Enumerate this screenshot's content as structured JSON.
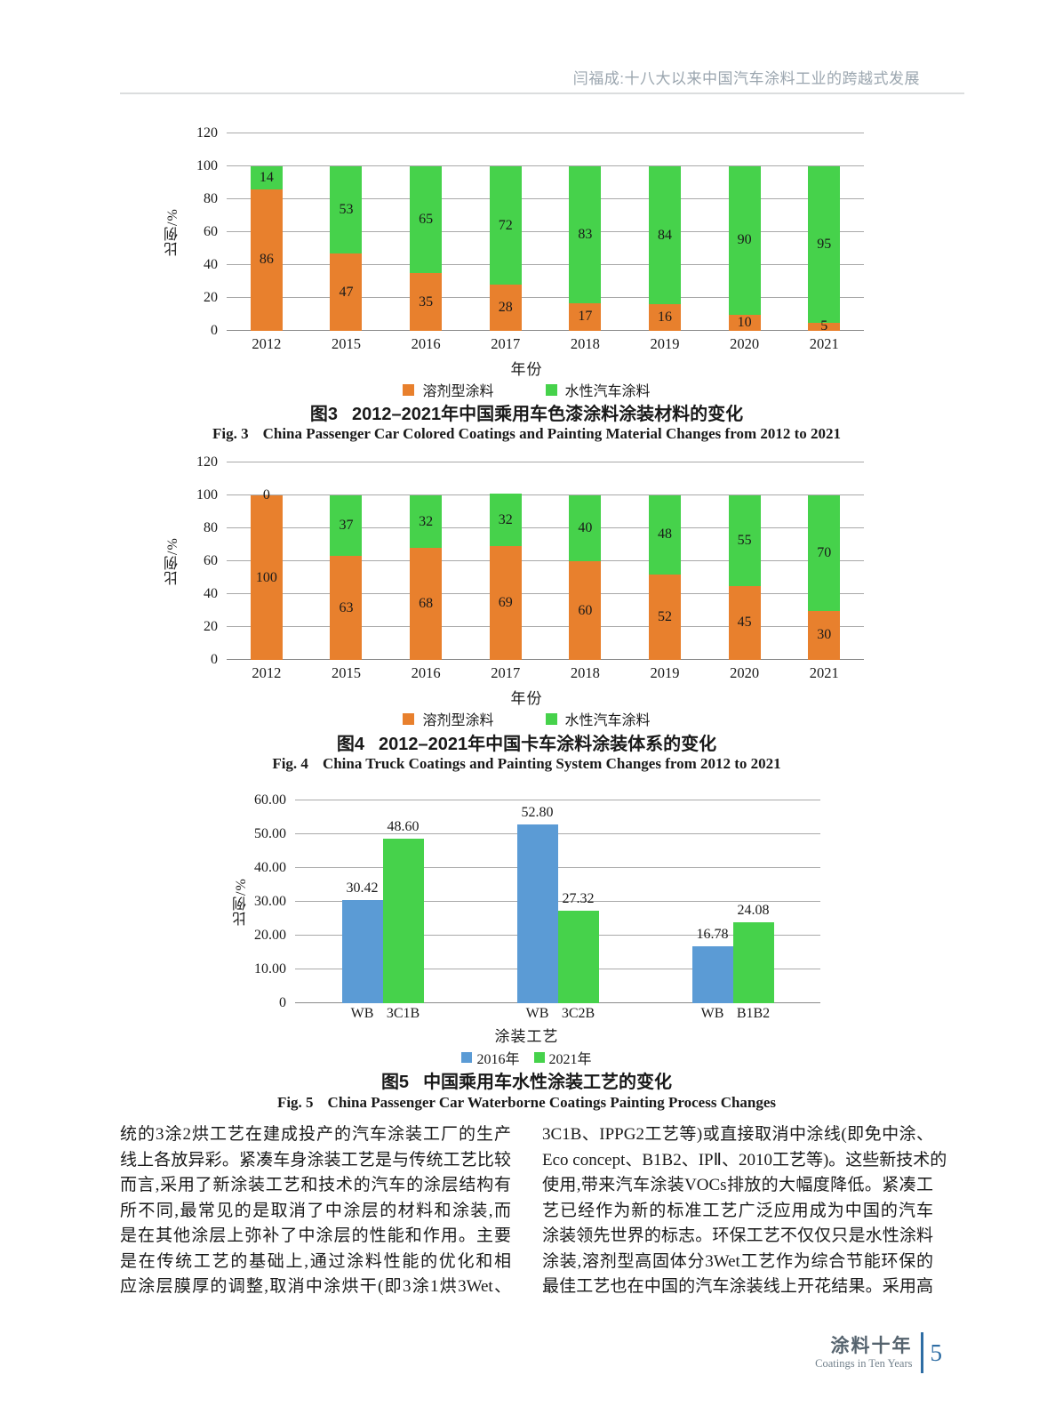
{
  "header": {
    "title": "闫福成:十八大以来中国汽车涂料工业的跨越式发展"
  },
  "chart_data": [
    {
      "id": "fig3",
      "type": "bar",
      "stacked": true,
      "categories": [
        "2012",
        "2015",
        "2016",
        "2017",
        "2018",
        "2019",
        "2020",
        "2021"
      ],
      "series": [
        {
          "name": "溶剂型涂料",
          "color": "#E8802D",
          "values": [
            86,
            47,
            35,
            28,
            17,
            16,
            10,
            5
          ]
        },
        {
          "name": "水性汽车涂料",
          "color": "#46D24B",
          "values": [
            14,
            53,
            65,
            72,
            83,
            84,
            90,
            95
          ]
        }
      ],
      "xlabel": "年份",
      "ylabel": "比例/%",
      "ylim": [
        0,
        120
      ],
      "grid": true,
      "legend_position": "bottom",
      "yticks": [
        {
          "v": 0,
          "label": "0"
        },
        {
          "v": 20,
          "label": "20"
        },
        {
          "v": 40,
          "label": "40"
        },
        {
          "v": 60,
          "label": "60"
        },
        {
          "v": 80,
          "label": "80"
        },
        {
          "v": 100,
          "label": "100"
        },
        {
          "v": 120,
          "label": "120"
        }
      ],
      "cap_cn_label": "图3",
      "cap_cn_text": "2012–2021年中国乘用车色漆涂料涂装材料的变化",
      "cap_en_label": "Fig. 3",
      "cap_en_text": "China Passenger Car Colored Coatings and Painting Material Changes from 2012 to 2021"
    },
    {
      "id": "fig4",
      "type": "bar",
      "stacked": true,
      "categories": [
        "2012",
        "2015",
        "2016",
        "2017",
        "2018",
        "2019",
        "2020",
        "2021"
      ],
      "series": [
        {
          "name": "溶剂型涂料",
          "color": "#E8802D",
          "values": [
            100,
            63,
            68,
            69,
            60,
            52,
            45,
            30
          ]
        },
        {
          "name": "水性汽车涂料",
          "color": "#46D24B",
          "values": [
            0,
            37,
            32,
            32,
            40,
            48,
            55,
            70
          ]
        }
      ],
      "xlabel": "年份",
      "ylabel": "比例/%",
      "ylim": [
        0,
        120
      ],
      "grid": true,
      "legend_position": "bottom",
      "yticks": [
        {
          "v": 0,
          "label": "0"
        },
        {
          "v": 20,
          "label": "20"
        },
        {
          "v": 40,
          "label": "40"
        },
        {
          "v": 60,
          "label": "60"
        },
        {
          "v": 80,
          "label": "80"
        },
        {
          "v": 100,
          "label": "100"
        },
        {
          "v": 120,
          "label": "120"
        }
      ],
      "cap_cn_label": "图4",
      "cap_cn_text": "2012–2021年中国卡车涂料涂装体系的变化",
      "cap_en_label": "Fig. 4",
      "cap_en_text": "China Truck Coatings and Painting System Changes from 2012 to 2021"
    },
    {
      "id": "fig5",
      "type": "bar",
      "grouped": true,
      "series_names": [
        "2016年",
        "2021年"
      ],
      "series_colors": {
        "2016年": "#5B9BD5",
        "2021年": "#46D24B"
      },
      "groups": [
        {
          "bars": [
            {
              "x": "WB",
              "series": "2016年",
              "value": 30.42,
              "display": "30.42"
            },
            {
              "x": "3C1B",
              "series": "2021年",
              "value": 48.6,
              "display": "48.60"
            }
          ]
        },
        {
          "bars": [
            {
              "x": "WB",
              "series": "2016年",
              "value": 52.8,
              "display": "52.80"
            },
            {
              "x": "3C2B",
              "series": "2021年",
              "value": 27.32,
              "display": "27.32"
            }
          ]
        },
        {
          "bars": [
            {
              "x": "WB",
              "series": "2016年",
              "value": 16.78,
              "display": "16.78"
            },
            {
              "x": "B1B2",
              "series": "2021年",
              "value": 24.08,
              "display": "24.08"
            }
          ]
        }
      ],
      "legend": [
        {
          "label": "2016年",
          "color": "#5B9BD5"
        },
        {
          "label": "2021年",
          "color": "#46D24B"
        }
      ],
      "xlabel": "涂装工艺",
      "ylabel": "比例/%",
      "ylim": [
        0,
        60
      ],
      "grid": true,
      "legend_position": "bottom",
      "yticks": [
        {
          "v": 0,
          "label": "0"
        },
        {
          "v": 10,
          "label": "10.00"
        },
        {
          "v": 20,
          "label": "20.00"
        },
        {
          "v": 30,
          "label": "30.00"
        },
        {
          "v": 40,
          "label": "40.00"
        },
        {
          "v": 50,
          "label": "50.00"
        },
        {
          "v": 60,
          "label": "60.00"
        }
      ],
      "cap_cn_label": "图5",
      "cap_cn_text": "中国乘用车水性涂装工艺的变化",
      "cap_en_label": "Fig. 5",
      "cap_en_text": "China Passenger Car Waterborne Coatings Painting Process Changes"
    }
  ],
  "body": {
    "left_column": [
      "统的3涂2烘工艺在建成投产的汽车涂装工厂的生产",
      "线上各放异彩。紧凑车身涂装工艺是与传统工艺比较",
      "而言,采用了新涂装工艺和技术的汽车的涂层结构有",
      "所不同,最常见的是取消了中涂层的材料和涂装,而",
      "是在其他涂层上弥补了中涂层的性能和作用。主要",
      "是在传统工艺的基础上,通过涂料性能的优化和相",
      "应涂层膜厚的调整,取消中涂烘干(即3涂1烘3Wet、"
    ],
    "right_column": [
      "3C1B、IPPG2工艺等)或直接取消中涂线(即免中涂、",
      "Eco concept、B1B2、IPⅡ、2010工艺等)。这些新技术的",
      "使用,带来汽车涂装VOCs排放的大幅度降低。紧凑工",
      "艺已经作为新的标准工艺广泛应用成为中国的汽车",
      "涂装领先世界的标志。环保工艺不仅仅只是水性涂料",
      "涂装,溶剂型高固体分3Wet工艺作为综合节能环保的",
      "最佳工艺也在中国的汽车涂装线上开花结果。采用高"
    ]
  },
  "footer": {
    "brand_cn": "涂料十年",
    "brand_en": "Coatings in Ten Years",
    "page_number": "5",
    "accent_color": "#2E6DA4"
  }
}
